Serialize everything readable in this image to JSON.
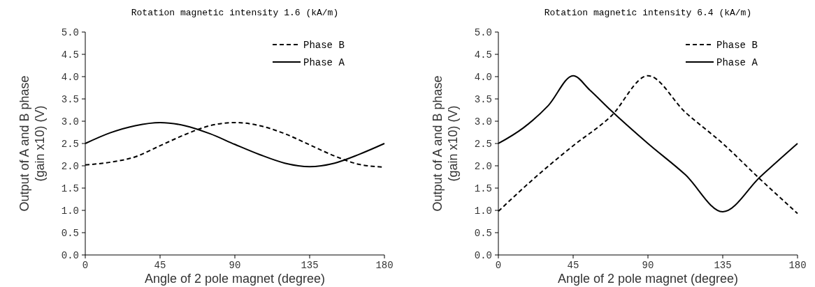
{
  "chart_data": [
    {
      "type": "line",
      "title": "Rotation magnetic intensity  1.6 (kA/m)",
      "xlabel": "Angle of 2 pole magnet (degree)",
      "ylabel": "Output of A and B phase\n(gain x10) (V)",
      "xlim": [
        0,
        180
      ],
      "xticks": [
        0,
        45,
        90,
        135,
        180
      ],
      "ylim": [
        0,
        5
      ],
      "yticks": [
        {
          "value": 0,
          "label": "0.0"
        },
        {
          "value": 0.5,
          "label": "0.5"
        },
        {
          "value": 1,
          "label": "1.0"
        },
        {
          "value": 1.5,
          "label": "1.5"
        },
        {
          "value": 2,
          "label": "2.0"
        },
        {
          "value": 2.5,
          "label": "2.5"
        },
        {
          "value": 3,
          "label": "3.0"
        },
        {
          "value": 3.5,
          "label": "3.5"
        },
        {
          "value": 4,
          "label": "4.0"
        },
        {
          "value": 4.5,
          "label": "4.5"
        },
        {
          "value": 5,
          "label": "5.0"
        }
      ],
      "legend": "top right",
      "grid": false,
      "marker": "none",
      "series": [
        {
          "name": "Phase B",
          "color": "#000000",
          "line_style": "dashed",
          "x": [
            0,
            15,
            30,
            45,
            60,
            75,
            90,
            105,
            120,
            135,
            150,
            165,
            180
          ],
          "values": [
            2.02,
            2.08,
            2.2,
            2.45,
            2.7,
            2.9,
            2.97,
            2.9,
            2.72,
            2.47,
            2.22,
            2.03,
            1.97
          ]
        },
        {
          "name": "Phase A",
          "color": "#000000",
          "line_style": "solid",
          "x": [
            0,
            15,
            30,
            45,
            60,
            75,
            90,
            105,
            120,
            135,
            150,
            165,
            180
          ],
          "values": [
            2.5,
            2.74,
            2.9,
            2.97,
            2.9,
            2.72,
            2.48,
            2.25,
            2.06,
            1.98,
            2.06,
            2.26,
            2.5
          ]
        }
      ]
    },
    {
      "type": "line",
      "title": "Rotation magnetic intensity  6.4 (kA/m)",
      "xlabel": "Angle of 2 pole magnet (degree)",
      "ylabel": "Output of A and B phase\n(gain x10) (V)",
      "xlim": [
        0,
        180
      ],
      "xticks": [
        0,
        45,
        90,
        135,
        180
      ],
      "ylim": [
        0,
        5
      ],
      "yticks": [
        {
          "value": 0,
          "label": "0.0"
        },
        {
          "value": 0.5,
          "label": "0.5"
        },
        {
          "value": 1,
          "label": "1.0"
        },
        {
          "value": 1.5,
          "label": "1.5"
        },
        {
          "value": 2,
          "label": "2.0"
        },
        {
          "value": 2.5,
          "label": "2.5"
        },
        {
          "value": 3,
          "label": "3.0"
        },
        {
          "value": 3.5,
          "label": "3.5"
        },
        {
          "value": 4,
          "label": "4.0"
        },
        {
          "value": 4.5,
          "label": "4.5"
        },
        {
          "value": 5,
          "label": "5.0"
        }
      ],
      "legend": "top right",
      "grid": false,
      "marker": "none",
      "series": [
        {
          "name": "Phase B",
          "color": "#000000",
          "line_style": "dashed",
          "x": [
            0,
            22.5,
            45,
            67.5,
            90,
            112.5,
            135,
            157.5,
            180
          ],
          "values": [
            0.98,
            1.75,
            2.45,
            3.1,
            4.02,
            3.2,
            2.5,
            1.7,
            0.93
          ]
        },
        {
          "name": "Phase A",
          "color": "#000000",
          "line_style": "solid",
          "x": [
            0,
            15,
            30,
            45,
            55,
            67.5,
            90,
            112.5,
            135,
            157.5,
            180
          ],
          "values": [
            2.5,
            2.85,
            3.35,
            4.02,
            3.7,
            3.25,
            2.5,
            1.8,
            0.97,
            1.75,
            2.5
          ]
        }
      ]
    }
  ]
}
